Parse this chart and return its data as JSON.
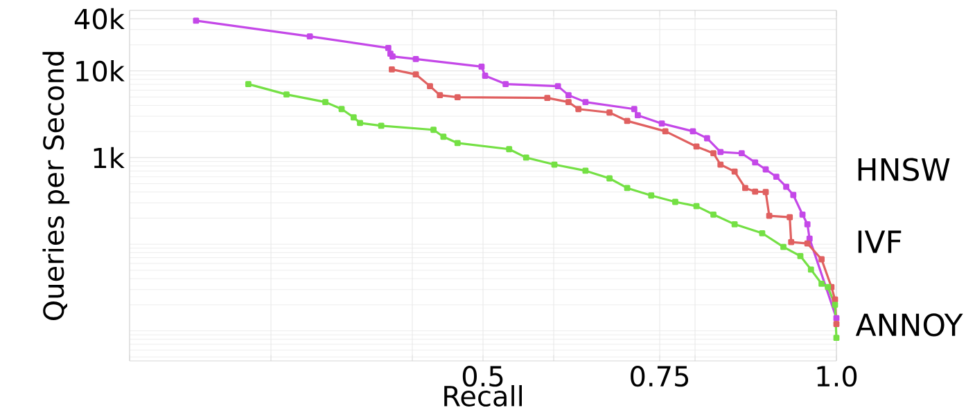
{
  "chart_data": {
    "type": "line",
    "xlabel": "Recall",
    "ylabel": "Queries per Second",
    "log": "y",
    "xlim": [
      0,
      1
    ],
    "ylim": [
      4.5,
      50000
    ],
    "xticks": [
      {
        "value": 0,
        "label": null
      },
      {
        "value": 0.2,
        "label": null
      },
      {
        "value": 0.4,
        "label": null
      },
      0.5,
      {
        "value": 0.6,
        "label": null
      },
      0.75,
      {
        "value": 0.8,
        "label": null
      },
      {
        "value": 1,
        "label": "1.0"
      }
    ],
    "yticks": [
      {
        "value": 1000,
        "label": "1k"
      },
      {
        "value": 10000,
        "label": "10k"
      },
      {
        "value": 40000,
        "label": "40k"
      }
    ],
    "grid": true,
    "legend": "right",
    "marker": "square",
    "line_style": "solid",
    "series": [
      {
        "name": "HNSW",
        "color": "#c448e8",
        "x": [
          0.094,
          0.255,
          0.366,
          0.369,
          0.372,
          0.405,
          0.498,
          0.503,
          0.532,
          0.606,
          0.621,
          0.645,
          0.714,
          0.719,
          0.753,
          0.797,
          0.817,
          0.836,
          0.866,
          0.885,
          0.9,
          0.915,
          0.929,
          0.939,
          0.952,
          0.959,
          0.962,
          1.0
        ],
        "values": [
          38000,
          25000,
          18400,
          15800,
          14700,
          13700,
          11200,
          8800,
          7050,
          6670,
          5250,
          4370,
          3630,
          3080,
          2470,
          2010,
          1670,
          1160,
          1120,
          880,
          730,
          600,
          460,
          370,
          220,
          170,
          116,
          14
        ]
      },
      {
        "name": "IVF",
        "color": "#e06060",
        "x": [
          0.371,
          0.405,
          0.425,
          0.439,
          0.464,
          0.591,
          0.621,
          0.635,
          0.679,
          0.704,
          0.758,
          0.802,
          0.826,
          0.836,
          0.856,
          0.871,
          0.885,
          0.9,
          0.905,
          0.934,
          0.936,
          0.959,
          0.979,
          0.993,
          0.998,
          1.0
        ],
        "values": [
          10400,
          9120,
          6670,
          5250,
          4970,
          4880,
          4370,
          3630,
          3310,
          2650,
          2010,
          1340,
          1120,
          830,
          690,
          445,
          405,
          400,
          213,
          205,
          106,
          102,
          67,
          32,
          23,
          12
        ]
      },
      {
        "name": "ANNOY",
        "color": "#74e044",
        "x": [
          0.168,
          0.222,
          0.277,
          0.3,
          0.317,
          0.326,
          0.356,
          0.43,
          0.444,
          0.464,
          0.537,
          0.561,
          0.601,
          0.645,
          0.679,
          0.704,
          0.738,
          0.772,
          0.802,
          0.826,
          0.856,
          0.895,
          0.925,
          0.949,
          0.964,
          0.979,
          0.988,
          0.998,
          1.0
        ],
        "values": [
          7050,
          5350,
          4370,
          3630,
          2910,
          2510,
          2330,
          2090,
          1740,
          1470,
          1250,
          1000,
          830,
          705,
          575,
          445,
          365,
          308,
          275,
          220,
          170,
          134,
          93,
          73,
          51,
          35,
          32,
          20,
          8.3
        ]
      }
    ]
  }
}
